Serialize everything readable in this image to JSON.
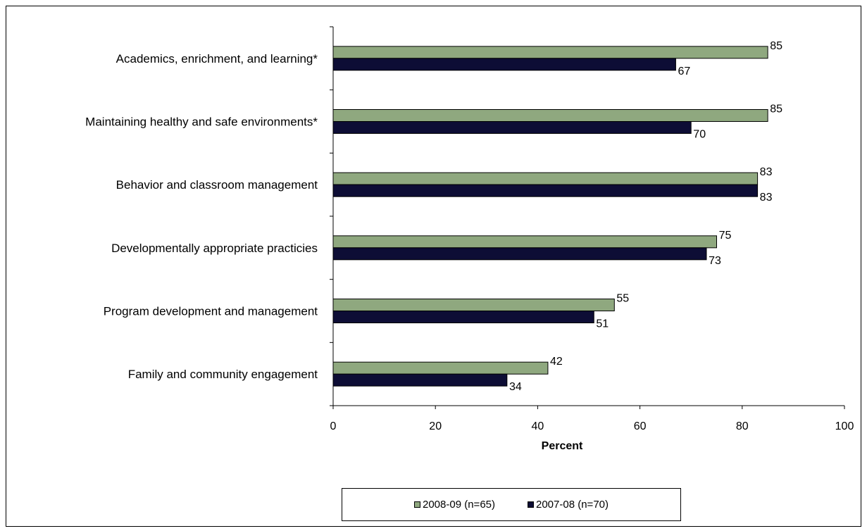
{
  "chart_data": {
    "type": "bar",
    "orientation": "horizontal",
    "categories": [
      "Academics, enrichment, and learning*",
      "Maintaining healthy and safe environments*",
      "Behavior and classroom management",
      "Developmentally appropriate practicies",
      "Program development and management",
      "Family and community engagement"
    ],
    "series": [
      {
        "name": "2008-09 (n=65)",
        "values": [
          85,
          85,
          83,
          75,
          55,
          42
        ],
        "color": "#8fa87f"
      },
      {
        "name": "2007-08 (n=70)",
        "values": [
          67,
          70,
          83,
          73,
          51,
          34
        ],
        "color": "#0d0d35"
      }
    ],
    "xlabel": "Percent",
    "xlim": [
      0,
      100
    ],
    "xticks": [
      0,
      20,
      40,
      60,
      80,
      100
    ],
    "grid": false,
    "legend_position": "bottom"
  }
}
